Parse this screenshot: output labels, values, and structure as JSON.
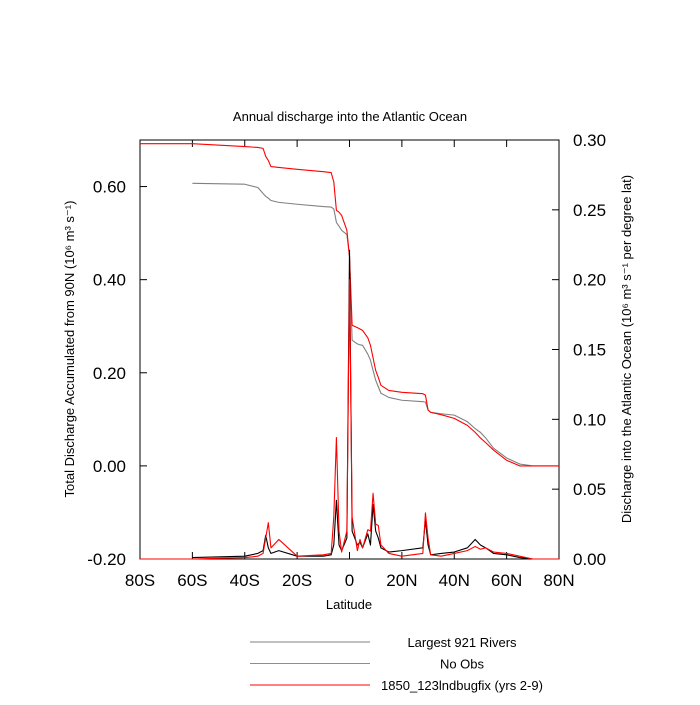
{
  "chart_data": {
    "type": "line",
    "title": "Annual discharge into the Atlantic Ocean",
    "xlabel": "Latitude",
    "ylabel": "Total Discharge Accumulated from 90N (10⁶ m³ s⁻¹)",
    "y2label": "Discharge into the Atlantic Ocean (10⁶ m³ s⁻¹ per degree lat)",
    "x": [
      -80,
      -60,
      -40,
      -35,
      -33,
      -32,
      -31,
      -30,
      -27,
      -20,
      -10,
      -7,
      -6,
      -5,
      -4,
      -3,
      -1,
      0,
      1,
      3,
      4,
      5,
      7,
      8,
      9,
      10,
      11,
      12,
      15,
      20,
      28,
      29,
      30,
      31,
      35,
      40,
      45,
      48,
      50,
      52,
      55,
      60,
      65,
      70,
      80
    ],
    "xlim": [
      -80,
      80
    ],
    "xticks": [
      {
        "value": -80,
        "label": "80S"
      },
      {
        "value": -60,
        "label": "60S"
      },
      {
        "value": -40,
        "label": "40S"
      },
      {
        "value": -20,
        "label": "20S"
      },
      0,
      {
        "value": 20,
        "label": "20N"
      },
      {
        "value": 40,
        "label": "40N"
      },
      {
        "value": 60,
        "label": "60N"
      },
      {
        "value": 80,
        "label": "80N"
      }
    ],
    "ylim": [
      -0.2,
      0.7
    ],
    "yticks": [
      {
        "value": -0.2,
        "label": "-0.20"
      },
      {
        "value": 0,
        "label": "0.00"
      },
      {
        "value": 0.2,
        "label": "0.20"
      },
      {
        "value": 0.4,
        "label": "0.40"
      },
      {
        "value": 0.6,
        "label": "0.60"
      }
    ],
    "y2lim": [
      0,
      0.3
    ],
    "y2ticks": [
      {
        "value": 0,
        "label": "0.00"
      },
      {
        "value": 0.05,
        "label": "0.05"
      },
      {
        "value": 0.1,
        "label": "0.10"
      },
      {
        "value": 0.15,
        "label": "0.15"
      },
      {
        "value": 0.2,
        "label": "0.20"
      },
      {
        "value": 0.25,
        "label": "0.25"
      },
      {
        "value": 0.3,
        "label": "0.30"
      }
    ],
    "series": [
      {
        "name": "Largest 921 Rivers",
        "color": "#808080",
        "values": [
          null,
          0.607,
          0.605,
          0.598,
          0.585,
          0.579,
          0.575,
          0.57,
          0.566,
          0.562,
          0.557,
          0.556,
          0.552,
          0.523,
          0.515,
          0.506,
          0.497,
          0.45,
          0.27,
          0.262,
          0.26,
          0.259,
          0.24,
          0.227,
          0.205,
          0.184,
          0.17,
          0.156,
          0.147,
          0.141,
          0.138,
          0.137,
          0.12,
          0.115,
          0.112,
          0.109,
          0.095,
          0.08,
          0.072,
          0.06,
          0.038,
          0.017,
          0.004,
          0,
          0
        ]
      },
      {
        "name": "No Obs",
        "color": "#8080ff"
      },
      {
        "name": "1850_123lndbugfix (yrs 2-9)",
        "color": "#ff0000",
        "values": [
          0.692,
          0.692,
          0.686,
          0.684,
          0.682,
          0.665,
          0.656,
          0.643,
          0.641,
          0.637,
          0.632,
          0.63,
          0.61,
          0.549,
          0.545,
          0.538,
          0.506,
          0.45,
          0.302,
          0.297,
          0.294,
          0.291,
          0.275,
          0.259,
          0.232,
          0.205,
          0.19,
          0.173,
          0.162,
          0.158,
          0.155,
          0.152,
          0.12,
          0.115,
          0.11,
          0.102,
          0.087,
          0.072,
          0.06,
          0.05,
          0.034,
          0.012,
          0,
          0,
          0
        ]
      },
      {
        "axis": "y2",
        "color": "#000000",
        "values": [
          null,
          0.001,
          0.002,
          0.004,
          0.006,
          0.017,
          0.008,
          0.004,
          0.006,
          0.002,
          0.002,
          0.003,
          0.01,
          0.042,
          0.01,
          0.006,
          0.015,
          0.221,
          0.02,
          0.01,
          0.012,
          0.008,
          0.018,
          0.01,
          0.039,
          0.02,
          0.015,
          0.008,
          0.005,
          0.006,
          0.008,
          0.028,
          0.01,
          0.003,
          0.004,
          0.005,
          0.008,
          0.014,
          0.01,
          0.008,
          0.004,
          0.003,
          0.001,
          0,
          0
        ]
      },
      {
        "axis": "y2",
        "color": "#ff0000",
        "values": [
          0,
          0,
          0.001,
          0.002,
          0.004,
          0.015,
          0.026,
          0.008,
          0.014,
          0.002,
          0.003,
          0.004,
          0.03,
          0.087,
          0.02,
          0.005,
          0.02,
          0.2,
          0.03,
          0.006,
          0.014,
          0.008,
          0.021,
          0.02,
          0.047,
          0.025,
          0.024,
          0.01,
          0.004,
          0.002,
          0.004,
          0.033,
          0.015,
          0.003,
          0.002,
          0.004,
          0.006,
          0.009,
          0.007,
          0.008,
          0.005,
          0.004,
          0.002,
          0,
          0
        ]
      }
    ]
  }
}
